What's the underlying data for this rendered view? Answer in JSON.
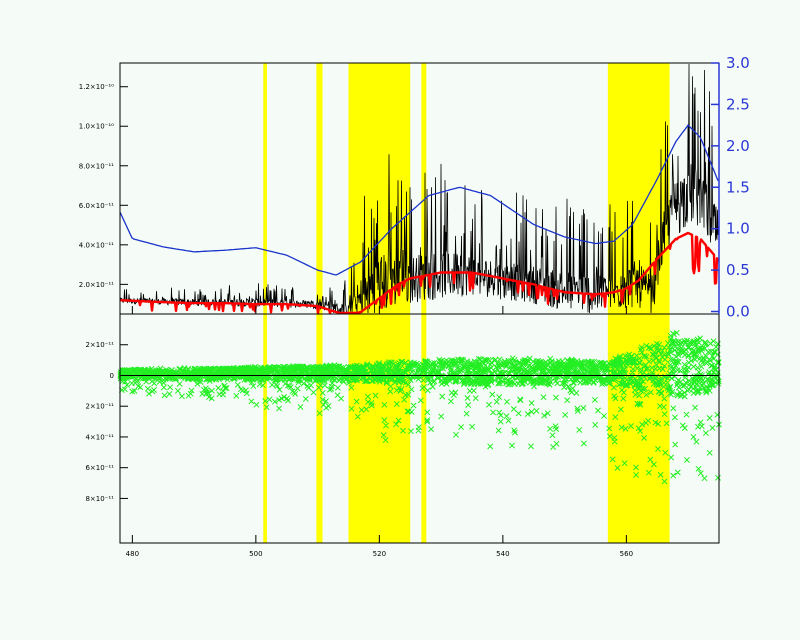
{
  "chart_data": [
    {
      "type": "line",
      "panel": "top",
      "x_range": [
        478,
        575
      ],
      "y_left_range": [
        5e-12,
        1.32e-10
      ],
      "y_left_ticks": [
        2e-11,
        4e-11,
        6e-11,
        8e-11,
        1e-10,
        1.2e-10
      ],
      "y_left_tick_labels": [
        "2.0×10⁻¹¹",
        "4.0×10⁻¹¹",
        "6.0×10⁻¹¹",
        "8.0×10⁻¹¹",
        "1.0×10⁻¹⁰",
        "1.2×10⁻¹⁰"
      ],
      "y_right_range": [
        -0.03,
        3.0
      ],
      "y_right_ticks": [
        0.0,
        0.5,
        1.0,
        1.5,
        2.0,
        2.5,
        3.0
      ],
      "y_right_tick_labels": [
        "0.0",
        "0.5",
        "1.0",
        "1.5",
        "2.0",
        "2.5",
        "3.0"
      ],
      "masked_regions": [
        [
          501.2,
          501.8
        ],
        [
          509.8,
          510.8
        ],
        [
          515,
          525
        ],
        [
          526.8,
          527.6
        ],
        [
          557,
          567
        ]
      ],
      "series": [
        {
          "color": "#000000",
          "style": "noisy-spectrum",
          "envelope": {
            "x": [
              478,
              490,
              500,
              510,
              515,
              517,
              520,
              525,
              530,
              535,
              540,
              545,
              550,
              555,
              558,
              562,
              564,
              566,
              568,
              570,
              572,
              575
            ],
            "base": [
              1.2e-11,
              1.1e-11,
              1.1e-11,
              1e-11,
              7e-12,
              1.3e-11,
              2.2e-11,
              2.4e-11,
              2.6e-11,
              2.6e-11,
              2.3e-11,
              2.1e-11,
              1.8e-11,
              1.6e-11,
              1.7e-11,
              2.2e-11,
              1.3e-11,
              4.5e-11,
              6e-11,
              6.8e-11,
              6.5e-11,
              4.5e-11
            ],
            "amp": [
              4e-12,
              5e-12,
              6e-12,
              6e-12,
              1e-11,
              3.5e-11,
              4.5e-11,
              3.5e-11,
              3.5e-11,
              3e-11,
              2.8e-11,
              2.8e-11,
              3e-11,
              3e-11,
              2.8e-11,
              3.5e-11,
              3e-11,
              3.5e-11,
              4.5e-11,
              4.5e-11,
              4.5e-11,
              3.5e-11
            ]
          }
        },
        {
          "color": "#ff0000",
          "style": "model",
          "x": [
            478,
            485,
            490,
            495,
            500,
            505,
            510,
            513,
            515,
            517,
            520,
            523,
            525,
            530,
            535,
            540,
            545,
            550,
            555,
            558,
            560,
            562,
            565,
            568,
            570,
            572,
            575
          ],
          "y": [
            1.2e-11,
            1.1e-11,
            1.05e-11,
            1.05e-11,
            1e-11,
            1e-11,
            9e-12,
            6e-12,
            4.5e-12,
            6e-12,
            1.3e-11,
            2e-11,
            2.3e-11,
            2.6e-11,
            2.6e-11,
            2.3e-11,
            2e-11,
            1.6e-11,
            1.5e-11,
            1.6e-11,
            1.8e-11,
            2.2e-11,
            3.3e-11,
            4.3e-11,
            4.6e-11,
            4.3e-11,
            3.2e-11
          ]
        },
        {
          "color": "#1a33cc",
          "style": "smooth",
          "axis": "right",
          "x": [
            478,
            480,
            485,
            490,
            495,
            500,
            505,
            510,
            513,
            517,
            522,
            528,
            533,
            538,
            545,
            550,
            555,
            558,
            561,
            565,
            568,
            570,
            572,
            575
          ],
          "y": [
            1.2,
            0.88,
            0.78,
            0.72,
            0.74,
            0.77,
            0.68,
            0.5,
            0.44,
            0.6,
            1.0,
            1.4,
            1.5,
            1.4,
            1.05,
            0.9,
            0.82,
            0.85,
            1.05,
            1.6,
            2.05,
            2.25,
            2.1,
            1.55
          ]
        }
      ]
    },
    {
      "type": "scatter",
      "panel": "bottom",
      "x_range": [
        478,
        575
      ],
      "x_ticks": [
        480,
        500,
        520,
        540,
        560
      ],
      "x_tick_labels": [
        "480",
        "500",
        "520",
        "540",
        "560"
      ],
      "y_range": [
        -1.09e-10,
        4e-11
      ],
      "y_ticks": [
        2e-11,
        0,
        -2e-11,
        -4e-11,
        -6e-11,
        -8e-11
      ],
      "y_tick_labels": [
        "2×10⁻¹¹",
        "0",
        "2×10⁻¹¹",
        "4×10⁻¹¹",
        "6×10⁻¹¹",
        "8×10⁻¹¹"
      ],
      "zero_line": true,
      "masked_regions": [
        [
          501.2,
          501.8
        ],
        [
          509.8,
          510.8
        ],
        [
          515,
          525
        ],
        [
          526.8,
          527.6
        ],
        [
          557,
          567
        ]
      ],
      "series": [
        {
          "color": "#22ee22",
          "marker": "x",
          "envelope": {
            "x": [
              478,
              490,
              500,
              510,
              514,
              518,
              522,
              526,
              530,
              535,
              540,
              545,
              550,
              555,
              558,
              562,
              565,
              568,
              570,
              572,
              575
            ],
            "up": [
              4e-12,
              5e-12,
              6e-12,
              7e-12,
              7e-12,
              8e-12,
              9e-12,
              1e-11,
              1.1e-11,
              1.2e-11,
              1.2e-11,
              1.1e-11,
              1.1e-11,
              1e-11,
              1.1e-11,
              1.8e-11,
              2.4e-11,
              2.8e-11,
              2.6e-11,
              2.5e-11,
              2.3e-11
            ],
            "down": [
              -1e-11,
              -1.5e-11,
              -2e-11,
              -2.6e-11,
              -2.5e-11,
              -4e-11,
              -4.3e-11,
              -4.5e-11,
              -4.8e-11,
              -4.8e-11,
              -4.8e-11,
              -4.8e-11,
              -4.8e-11,
              -5e-11,
              -6e-11,
              -6.8e-11,
              -7.2e-11,
              -6.8e-11,
              -6.5e-11,
              -6.5e-11,
              -7.5e-11
            ]
          }
        }
      ]
    }
  ]
}
